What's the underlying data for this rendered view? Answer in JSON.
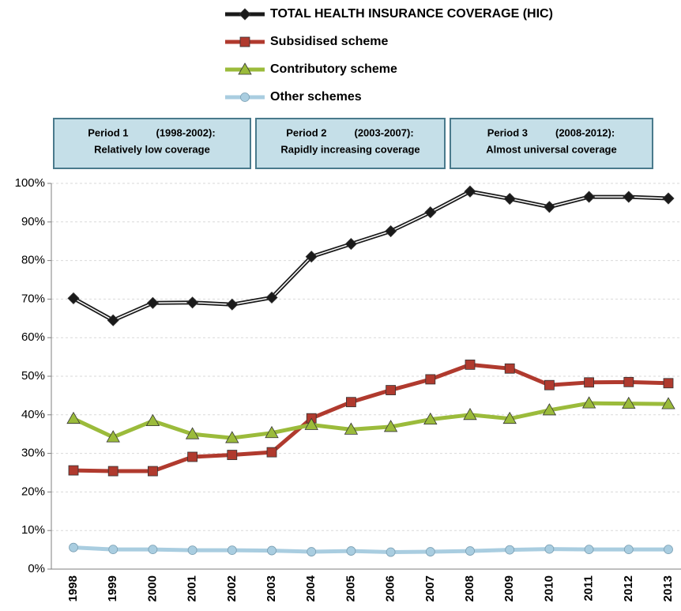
{
  "chart_data": {
    "type": "line",
    "categories": [
      "1998",
      "1999",
      "2000",
      "2001",
      "2002",
      "2003",
      "2004",
      "2005",
      "2006",
      "2007",
      "2008",
      "2009",
      "2010",
      "2011",
      "2012",
      "2013"
    ],
    "series": [
      {
        "name": "TOTAL HEALTH INSURANCE COVERAGE (HIC)",
        "color": "#1a1a1a",
        "marker": "diamond",
        "values": [
          70.2,
          64.5,
          69,
          69.1,
          68.6,
          70.4,
          81,
          84.3,
          87.6,
          92.5,
          97.9,
          96,
          93.9,
          96.5,
          96.5,
          96.1
        ]
      },
      {
        "name": "Subsidised scheme",
        "color": "#b03a2e",
        "marker": "square",
        "values": [
          25.6,
          25.4,
          25.4,
          29.1,
          29.6,
          30.3,
          39.1,
          43.3,
          46.4,
          49.2,
          53,
          52,
          47.7,
          48.4,
          48.5,
          48.2
        ]
      },
      {
        "name": "Contributory scheme",
        "color": "#9bbb3b",
        "marker": "triangle",
        "values": [
          39,
          34.2,
          38.4,
          35,
          34,
          35.3,
          37.4,
          36.2,
          36.9,
          38.8,
          40,
          39,
          41.2,
          43,
          42.9,
          42.8
        ]
      },
      {
        "name": "Other schemes",
        "color": "#a9cde0",
        "marker": "circle",
        "values": [
          5.6,
          5.1,
          5.1,
          4.9,
          4.9,
          4.8,
          4.5,
          4.7,
          4.4,
          4.5,
          4.7,
          5,
          5.2,
          5.1,
          5.1,
          5.1
        ]
      }
    ],
    "ylim": [
      0,
      100
    ],
    "yticks": [
      {
        "value": 0,
        "label": "0%"
      },
      {
        "value": 10,
        "label": "10%"
      },
      {
        "value": 20,
        "label": "20%"
      },
      {
        "value": 30,
        "label": "30%"
      },
      {
        "value": 40,
        "label": "40%"
      },
      {
        "value": 50,
        "label": "50%"
      },
      {
        "value": 60,
        "label": "60%"
      },
      {
        "value": 70,
        "label": "70%"
      },
      {
        "value": 80,
        "label": "80%"
      },
      {
        "value": 90,
        "label": "90%"
      },
      {
        "value": 100,
        "label": "100%"
      }
    ],
    "grid": true,
    "annotations": [
      {
        "title": "Period 1",
        "range": "(1998-2002):",
        "text": "Relatively low coverage"
      },
      {
        "title": "Period 2",
        "range": "(2003-2007):",
        "text": "Rapidly increasing coverage"
      },
      {
        "title": "Period 3",
        "range": "(2008-2012):",
        "text": "Almost universal coverage"
      }
    ]
  }
}
